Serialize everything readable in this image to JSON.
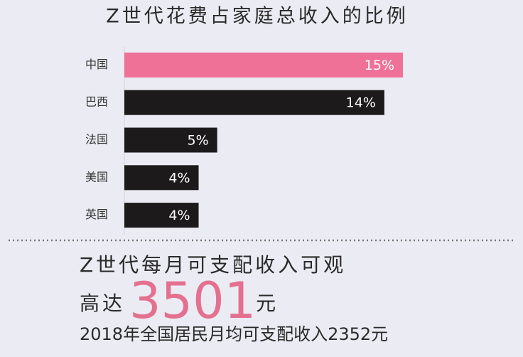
{
  "chart_data": {
    "type": "hbar",
    "title": "Z世代花费占家庭总收入的比例",
    "categories": [
      "中国",
      "巴西",
      "法国",
      "美国",
      "英国"
    ],
    "values": [
      15,
      14,
      5,
      4,
      4
    ],
    "value_labels": [
      "15%",
      "14%",
      "5%",
      "4%",
      "4%"
    ],
    "colors": [
      "#f07197",
      "#1c1a1b",
      "#1c1a1b",
      "#1c1a1b",
      "#1c1a1b"
    ],
    "xlim": [
      0,
      15
    ]
  },
  "summary": {
    "headline": "Z世代每月可支配收入可观",
    "prefix": "高达",
    "amount": 3501,
    "unit": "元",
    "note": "2018年全国居民月均可支配收入2352元"
  }
}
